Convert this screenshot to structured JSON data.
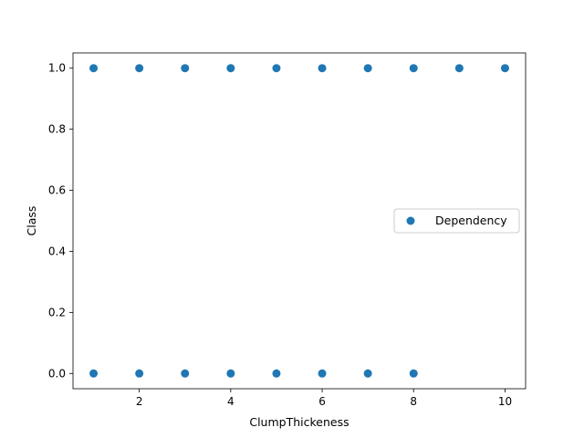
{
  "chart_data": {
    "type": "scatter",
    "title": "",
    "xlabel": "ClumpThickeness",
    "ylabel": "Class",
    "xlim": [
      0.55,
      10.45
    ],
    "ylim": [
      -0.05,
      1.05
    ],
    "x_ticks": [
      2,
      4,
      6,
      8,
      10
    ],
    "x_tick_labels": [
      "2",
      "4",
      "6",
      "8",
      "10"
    ],
    "y_ticks": [
      0.0,
      0.2,
      0.4,
      0.6,
      0.8,
      1.0
    ],
    "y_tick_labels": [
      "0.0",
      "0.2",
      "0.4",
      "0.6",
      "0.8",
      "1.0"
    ],
    "grid": false,
    "legend": {
      "position": "center-right",
      "entries": [
        "Dependency"
      ]
    },
    "series": [
      {
        "name": "Dependency",
        "color": "#1f77b4",
        "points": [
          {
            "x": 1,
            "y": 1
          },
          {
            "x": 2,
            "y": 1
          },
          {
            "x": 3,
            "y": 1
          },
          {
            "x": 4,
            "y": 1
          },
          {
            "x": 5,
            "y": 1
          },
          {
            "x": 6,
            "y": 1
          },
          {
            "x": 7,
            "y": 1
          },
          {
            "x": 8,
            "y": 1
          },
          {
            "x": 9,
            "y": 1
          },
          {
            "x": 10,
            "y": 1
          },
          {
            "x": 1,
            "y": 0
          },
          {
            "x": 2,
            "y": 0
          },
          {
            "x": 3,
            "y": 0
          },
          {
            "x": 4,
            "y": 0
          },
          {
            "x": 5,
            "y": 0
          },
          {
            "x": 6,
            "y": 0
          },
          {
            "x": 7,
            "y": 0
          },
          {
            "x": 8,
            "y": 0
          }
        ]
      }
    ]
  }
}
